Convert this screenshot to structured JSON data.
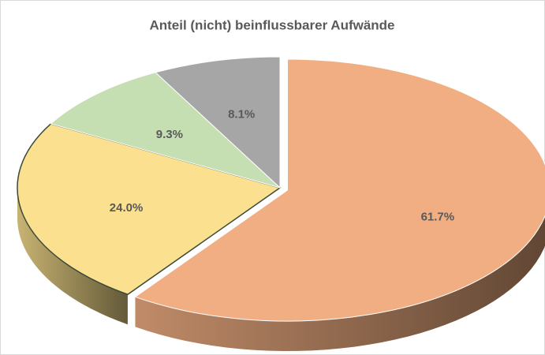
{
  "chart_data": {
    "type": "pie3d",
    "title": "Anteil (nicht) beinflussbarer Aufwände",
    "values": [
      61.7,
      24.0,
      9.3,
      8.1
    ],
    "value_labels": [
      "61.7%",
      "24.0%",
      "9.3%",
      "8.1%"
    ],
    "colors": [
      "#f0ae82",
      "#fae08f",
      "#c5dfb2",
      "#a6a6a6"
    ]
  }
}
